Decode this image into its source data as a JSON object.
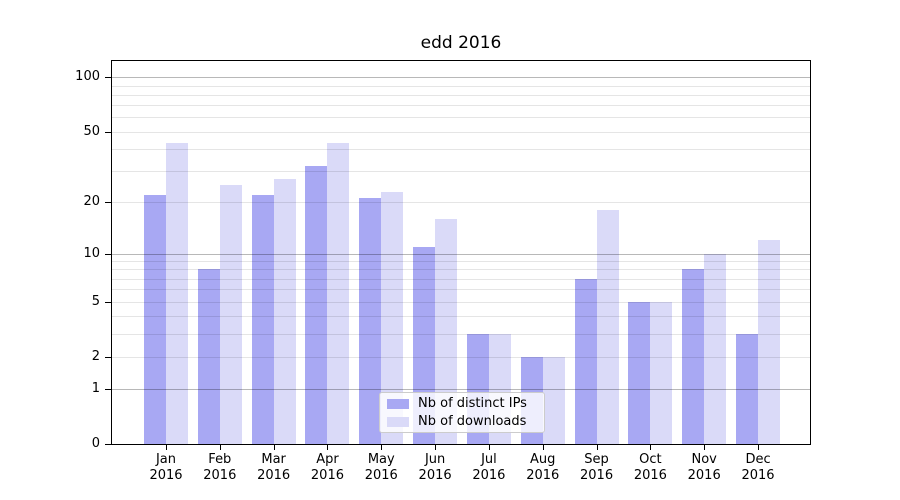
{
  "chart_data": {
    "type": "bar",
    "title": "edd 2016",
    "categories": [
      "Jan 2016",
      "Feb 2016",
      "Mar 2016",
      "Apr 2016",
      "May 2016",
      "Jun 2016",
      "Jul 2016",
      "Aug 2016",
      "Sep 2016",
      "Oct 2016",
      "Nov 2016",
      "Dec 2016"
    ],
    "series": [
      {
        "name": "Nb of distinct IPs",
        "color": "#a8a8f3",
        "values": [
          22,
          8,
          22,
          32,
          21,
          11,
          3,
          2,
          7,
          5,
          8,
          3
        ]
      },
      {
        "name": "Nb of downloads",
        "color": "#dadaf8",
        "values": [
          43,
          25,
          27,
          43,
          23,
          16,
          3,
          2,
          18,
          5,
          10,
          12
        ]
      }
    ],
    "xlabel": "",
    "ylabel": "",
    "y_scale": "log10(value+1)",
    "ylim": [
      0,
      127
    ],
    "y_tick_labels": [
      0,
      1,
      2,
      5,
      10,
      20,
      50,
      100
    ],
    "grid_major_values": [
      1,
      10,
      100
    ],
    "grid_minor_values": [
      2,
      3,
      4,
      5,
      6,
      7,
      8,
      9,
      20,
      30,
      40,
      50,
      60,
      70,
      80,
      90
    ],
    "grid_major_color": "rgba(0,0,0,0.28)",
    "grid_minor_color": "rgba(0,0,0,0.10)",
    "legend_position": "inside bottom-center",
    "grid": "horizontal major+minor, drawn over bars"
  }
}
